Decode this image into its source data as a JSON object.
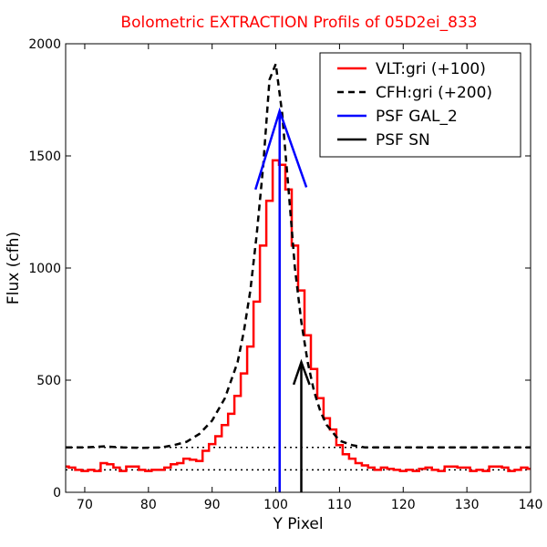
{
  "chart_data": {
    "type": "line",
    "title": "Bolometric EXTRACTION Profils of 05D2ei_833",
    "xlabel": "Y Pixel",
    "ylabel": "Flux (cfh)",
    "xlim": [
      67,
      140
    ],
    "ylim": [
      0,
      2000
    ],
    "xticks": [
      70,
      80,
      90,
      100,
      110,
      120,
      130,
      140
    ],
    "yticks": [
      0,
      500,
      1000,
      1500,
      2000
    ],
    "grid": false,
    "legend_position": "top-right",
    "series": [
      {
        "name": "VLT:gri (+100)",
        "style": "steps",
        "color": "#ff0000",
        "x": [
          67,
          68,
          69,
          70,
          71,
          72,
          73,
          74,
          75,
          76,
          77,
          78,
          79,
          80,
          81,
          82,
          83,
          84,
          85,
          86,
          87,
          88,
          89,
          90,
          91,
          92,
          93,
          94,
          95,
          96,
          97,
          98,
          99,
          100,
          101,
          102,
          103,
          104,
          105,
          106,
          107,
          108,
          109,
          110,
          111,
          112,
          113,
          114,
          115,
          116,
          117,
          118,
          119,
          120,
          121,
          122,
          123,
          124,
          125,
          126,
          127,
          128,
          129,
          130,
          131,
          132,
          133,
          134,
          135,
          136,
          137,
          138,
          139,
          140
        ],
        "y": [
          115,
          110,
          100,
          95,
          100,
          95,
          130,
          125,
          110,
          95,
          115,
          115,
          100,
          95,
          100,
          100,
          110,
          125,
          130,
          150,
          145,
          140,
          185,
          215,
          250,
          300,
          350,
          430,
          530,
          650,
          850,
          1100,
          1300,
          1480,
          1460,
          1350,
          1100,
          900,
          700,
          550,
          420,
          330,
          280,
          210,
          170,
          150,
          130,
          120,
          110,
          100,
          110,
          105,
          100,
          95,
          100,
          95,
          105,
          110,
          100,
          95,
          115,
          115,
          110,
          110,
          95,
          100,
          95,
          115,
          115,
          110,
          95,
          100,
          110,
          105
        ]
      },
      {
        "name": "CFH:gri (+200)",
        "style": "dashed",
        "color": "#000000",
        "x": [
          67,
          70,
          73,
          76,
          79,
          82,
          84,
          86,
          88,
          90,
          92,
          94,
          95,
          96,
          97,
          98,
          99,
          100,
          101,
          102,
          103,
          104,
          105,
          106,
          107,
          108,
          110,
          112,
          114,
          117,
          120,
          125,
          130,
          135,
          140
        ],
        "y": [
          200,
          200,
          205,
          200,
          198,
          200,
          210,
          225,
          260,
          320,
          420,
          580,
          720,
          900,
          1150,
          1450,
          1840,
          1910,
          1690,
          1350,
          1000,
          760,
          580,
          450,
          360,
          300,
          230,
          210,
          200,
          200,
          200,
          200,
          200,
          200,
          200
        ]
      },
      {
        "name": "PSF GAL_2",
        "style": "solid",
        "color": "#0000ff",
        "x": [
          96.8,
          100.6,
          104.8
        ],
        "y": [
          1350,
          1700,
          1360
        ],
        "vline_x": 100.6
      },
      {
        "name": "PSF SN",
        "style": "solid",
        "color": "#000000",
        "x": [
          102.8,
          104.0,
          105.3
        ],
        "y": [
          480,
          580,
          480
        ],
        "vline_x": 104.0
      }
    ],
    "reference_lines": [
      {
        "y": 200,
        "style": "dotted",
        "color": "#000000"
      },
      {
        "y": 100,
        "style": "dotted",
        "color": "#000000"
      }
    ]
  }
}
